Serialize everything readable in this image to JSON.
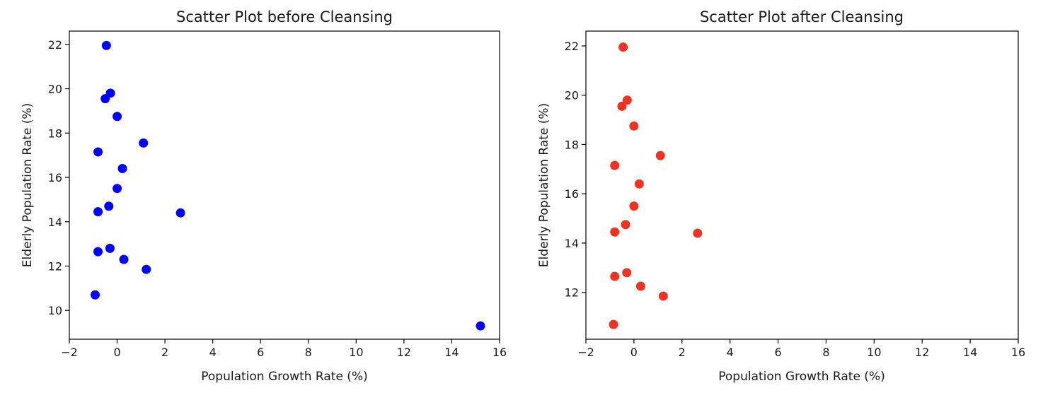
{
  "chart_data": [
    {
      "type": "scatter",
      "title": "Scatter Plot before Cleansing",
      "xlabel": "Population Growth Rate (%)",
      "ylabel": "Elderly Population Rate (%)",
      "xlim": [
        -2,
        16
      ],
      "ylim": [
        8.7,
        22.6
      ],
      "xticks": [
        -2,
        0,
        2,
        4,
        6,
        8,
        10,
        12,
        14,
        16
      ],
      "yticks": [
        10,
        12,
        14,
        16,
        18,
        20,
        22
      ],
      "xtick_labels": [
        "−2",
        "0",
        "2",
        "4",
        "6",
        "8",
        "10",
        "12",
        "14",
        "16"
      ],
      "ytick_labels": [
        "10",
        "12",
        "14",
        "16",
        "18",
        "20",
        "22"
      ],
      "grid": false,
      "color": "#0000ff",
      "points": [
        {
          "x": -0.45,
          "y": 21.95
        },
        {
          "x": -0.28,
          "y": 19.8
        },
        {
          "x": -0.5,
          "y": 19.55
        },
        {
          "x": 0.0,
          "y": 18.75
        },
        {
          "x": 1.1,
          "y": 17.55
        },
        {
          "x": -0.8,
          "y": 17.15
        },
        {
          "x": 0.22,
          "y": 16.4
        },
        {
          "x": 0.0,
          "y": 15.5
        },
        {
          "x": -0.35,
          "y": 14.7
        },
        {
          "x": -0.8,
          "y": 14.45
        },
        {
          "x": 2.65,
          "y": 14.4
        },
        {
          "x": -0.3,
          "y": 12.8
        },
        {
          "x": -0.8,
          "y": 12.65
        },
        {
          "x": 0.28,
          "y": 12.3
        },
        {
          "x": 1.22,
          "y": 11.85
        },
        {
          "x": -0.92,
          "y": 10.7
        },
        {
          "x": 15.2,
          "y": 9.3
        }
      ]
    },
    {
      "type": "scatter",
      "title": "Scatter Plot after Cleansing",
      "xlabel": "Population Growth Rate (%)",
      "ylabel": "Elderly Population Rate (%)",
      "xlim": [
        -2,
        16
      ],
      "ylim": [
        10.1,
        22.6
      ],
      "xticks": [
        -2,
        0,
        2,
        4,
        6,
        8,
        10,
        12,
        14,
        16
      ],
      "yticks": [
        12,
        14,
        16,
        18,
        20,
        22
      ],
      "xtick_labels": [
        "−2",
        "0",
        "2",
        "4",
        "6",
        "8",
        "10",
        "12",
        "14",
        "16"
      ],
      "ytick_labels": [
        "12",
        "14",
        "16",
        "18",
        "20",
        "22"
      ],
      "grid": false,
      "color": "#ee3322",
      "points": [
        {
          "x": -0.45,
          "y": 21.95
        },
        {
          "x": -0.28,
          "y": 19.8
        },
        {
          "x": -0.5,
          "y": 19.55
        },
        {
          "x": 0.0,
          "y": 18.75
        },
        {
          "x": 1.1,
          "y": 17.55
        },
        {
          "x": -0.8,
          "y": 17.15
        },
        {
          "x": 0.22,
          "y": 16.4
        },
        {
          "x": 0.0,
          "y": 15.5
        },
        {
          "x": -0.35,
          "y": 14.75
        },
        {
          "x": -0.8,
          "y": 14.45
        },
        {
          "x": 2.65,
          "y": 14.4
        },
        {
          "x": -0.3,
          "y": 12.8
        },
        {
          "x": -0.8,
          "y": 12.65
        },
        {
          "x": 0.28,
          "y": 12.25
        },
        {
          "x": 1.22,
          "y": 11.85
        },
        {
          "x": -0.85,
          "y": 10.7
        }
      ]
    }
  ]
}
